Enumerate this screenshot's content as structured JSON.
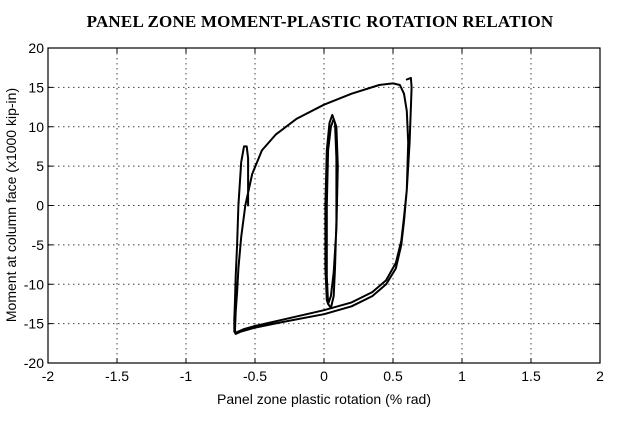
{
  "chart_data": {
    "type": "line",
    "title": "PANEL ZONE MOMENT-PLASTIC ROTATION RELATION",
    "xlabel": "Panel zone plastic rotation (% rad)",
    "ylabel": "Moment at column face (x1000 kip-in)",
    "xlim": [
      -2,
      2
    ],
    "ylim": [
      -20,
      20
    ],
    "xticks": [
      -2,
      -1.5,
      -1,
      -0.5,
      0,
      0.5,
      1,
      1.5,
      2
    ],
    "yticks": [
      -20,
      -15,
      -10,
      -5,
      0,
      5,
      10,
      15,
      20
    ],
    "xtick_labels": [
      "-2",
      "-1.5",
      "-1",
      "-0.5",
      "0",
      "0.5",
      "1",
      "1.5",
      "2"
    ],
    "ytick_labels": [
      "-20",
      "-15",
      "-10",
      "-5",
      "0",
      "5",
      "10",
      "15",
      "20"
    ],
    "grid": true,
    "series": [
      {
        "x": [
          -0.55,
          -0.55,
          -0.56,
          -0.58,
          -0.6,
          -0.62,
          -0.63,
          -0.64,
          -0.645,
          -0.65,
          -0.65,
          -0.64,
          -0.6,
          -0.5,
          -0.3,
          0.0,
          0.2,
          0.35,
          0.45,
          0.52,
          0.56,
          0.58,
          0.6,
          0.61,
          0.6,
          0.58,
          0.55,
          0.5,
          0.4,
          0.2,
          0.0,
          -0.2,
          -0.35,
          -0.45,
          -0.52,
          -0.57,
          -0.6,
          -0.62,
          -0.63,
          -0.64,
          -0.645,
          -0.64,
          -0.62,
          -0.58,
          -0.5,
          -0.3,
          0.0,
          0.2,
          0.35,
          0.45,
          0.52,
          0.56,
          0.58,
          0.6,
          0.62,
          0.63,
          0.635,
          0.63,
          0.6
        ],
        "y": [
          0.0,
          6.0,
          7.5,
          7.5,
          5.5,
          0.0,
          -5.0,
          -9.0,
          -12.0,
          -14.5,
          -16.0,
          -16.3,
          -16.0,
          -15.5,
          -14.8,
          -13.8,
          -12.8,
          -11.5,
          -10.0,
          -8.0,
          -5.0,
          -2.0,
          2.0,
          8.0,
          12.0,
          14.2,
          15.3,
          15.5,
          15.3,
          14.2,
          12.8,
          11.0,
          9.0,
          7.0,
          4.0,
          0.0,
          -4.0,
          -8.0,
          -11.0,
          -13.5,
          -15.8,
          -16.2,
          -16.0,
          -15.7,
          -15.3,
          -14.5,
          -13.3,
          -12.3,
          -11.0,
          -9.5,
          -7.3,
          -4.5,
          -1.5,
          2.0,
          8.0,
          12.5,
          15.0,
          16.2,
          16.0
        ]
      },
      {
        "x": [
          0.02,
          0.01,
          0.01,
          0.02,
          0.04,
          0.06,
          0.08,
          0.09,
          0.09,
          0.08,
          0.07,
          0.05,
          0.03,
          0.02,
          0.02,
          0.03,
          0.05,
          0.07,
          0.09,
          0.1,
          0.09,
          0.07,
          0.05,
          0.03,
          0.02
        ],
        "y": [
          -12.0,
          -8.0,
          0.0,
          7.0,
          10.5,
          11.5,
          10.5,
          6.0,
          -2.0,
          -8.0,
          -11.5,
          -13.0,
          -12.5,
          -9.0,
          0.0,
          7.0,
          10.0,
          11.0,
          10.0,
          5.0,
          -3.0,
          -8.5,
          -11.5,
          -12.5,
          -12.0
        ]
      }
    ]
  }
}
